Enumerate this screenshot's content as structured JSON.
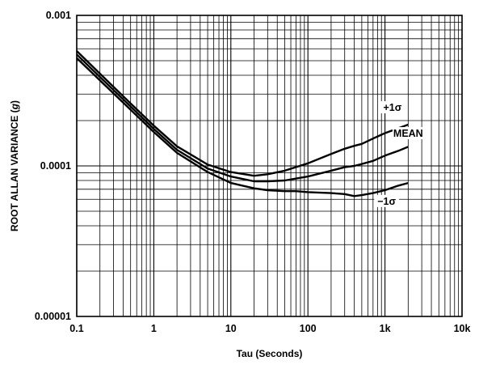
{
  "chart_data": {
    "type": "line",
    "xscale": "log",
    "yscale": "log",
    "xlim": [
      0.1,
      10000
    ],
    "ylim": [
      1e-05,
      0.001
    ],
    "grid": true,
    "xlabel": "Tau (Seconds)",
    "ylabel_prefix": "ROOT ALLAN VARIANCE (",
    "ylabel_unit": "g",
    "ylabel_suffix": ")",
    "x_ticks": [
      {
        "value": 0.1,
        "label": "0.1"
      },
      {
        "value": 1,
        "label": "1"
      },
      {
        "value": 10,
        "label": "10"
      },
      {
        "value": 100,
        "label": "100"
      },
      {
        "value": 1000,
        "label": "1k"
      },
      {
        "value": 10000,
        "label": "10k"
      }
    ],
    "y_ticks": [
      {
        "value": 1e-05,
        "label": "0.00001"
      },
      {
        "value": 0.0001,
        "label": "0.0001"
      },
      {
        "value": 0.001,
        "label": "0.001"
      }
    ],
    "series": [
      {
        "name": "+1σ",
        "x": [
          0.1,
          0.2,
          0.5,
          1,
          2,
          5,
          10,
          20,
          30,
          50,
          100,
          200,
          300,
          400,
          500,
          700,
          1000,
          1500,
          2000
        ],
        "y": [
          0.00058,
          0.00041,
          0.00026,
          0.000185,
          0.000135,
          0.000102,
          9.1e-05,
          8.6e-05,
          8.8e-05,
          9.3e-05,
          0.000104,
          0.00012,
          0.00013,
          0.000136,
          0.00014,
          0.000152,
          0.000165,
          0.000178,
          0.000188
        ]
      },
      {
        "name": "MEAN",
        "x": [
          0.1,
          0.2,
          0.5,
          1,
          2,
          5,
          10,
          20,
          30,
          50,
          100,
          200,
          300,
          400,
          500,
          700,
          1000,
          1500,
          2000
        ],
        "y": [
          0.00055,
          0.00039,
          0.000248,
          0.000176,
          0.000128,
          9.6e-05,
          8.5e-05,
          7.9e-05,
          7.9e-05,
          8e-05,
          8.5e-05,
          9.3e-05,
          9.8e-05,
          0.0001,
          0.000103,
          0.000108,
          0.000117,
          0.000126,
          0.000134
        ]
      },
      {
        "name": "−1σ",
        "x": [
          0.1,
          0.2,
          0.5,
          1,
          2,
          5,
          10,
          20,
          30,
          50,
          70,
          100,
          200,
          300,
          400,
          500,
          700,
          1000,
          1500,
          2000
        ],
        "y": [
          0.00052,
          0.00037,
          0.000236,
          0.000168,
          0.000122,
          9.1e-05,
          7.7e-05,
          7.1e-05,
          6.9e-05,
          6.8e-05,
          6.8e-05,
          6.7e-05,
          6.6e-05,
          6.5e-05,
          6.3e-05,
          6.4e-05,
          6.6e-05,
          6.9e-05,
          7.4e-05,
          7.7e-05
        ]
      }
    ],
    "annotations": [
      {
        "text": "+1σ",
        "x": 1250,
        "y": 0.000235
      },
      {
        "text": "MEAN",
        "x": 2000,
        "y": 0.000158
      },
      {
        "text": "−1σ",
        "x": 1050,
        "y": 5.6e-05
      }
    ]
  }
}
